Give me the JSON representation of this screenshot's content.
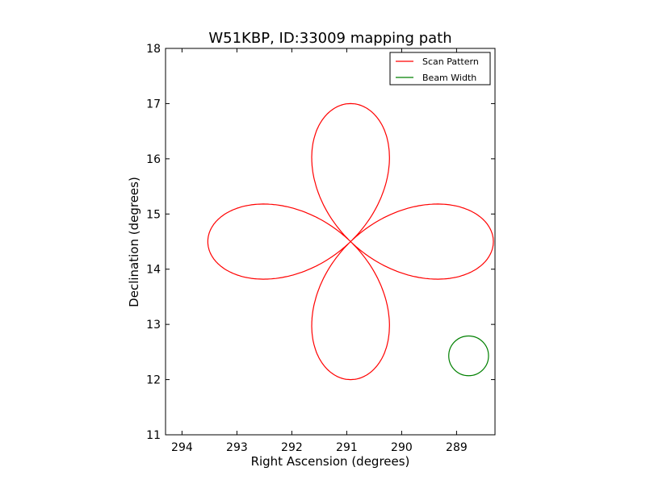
{
  "chart_data": {
    "type": "line",
    "title": "W51KBP, ID:33009 mapping path",
    "xlabel": "Right Ascension (degrees)",
    "ylabel": "Declination (degrees)",
    "xlim": [
      294.3,
      288.3
    ],
    "ylim": [
      11,
      18
    ],
    "x_ticks": [
      "294",
      "293",
      "292",
      "291",
      "290",
      "289"
    ],
    "x_tick_values": [
      294,
      293,
      292,
      291,
      290,
      289
    ],
    "y_ticks": [
      "11",
      "12",
      "13",
      "14",
      "15",
      "16",
      "17",
      "18"
    ],
    "y_tick_values": [
      11,
      12,
      13,
      14,
      15,
      16,
      17,
      18
    ],
    "grid": false,
    "legend": {
      "placement": "top-right",
      "entries": [
        {
          "label": "Scan Pattern",
          "color": "#ff0000"
        },
        {
          "label": "Beam Width",
          "color": "#008000"
        }
      ]
    },
    "series": [
      {
        "name": "Scan Pattern",
        "color": "#ff0000",
        "center": [
          290.93,
          14.5
        ],
        "petal_reach_ra": 2.6,
        "petal_reach_dec": 2.5,
        "petals": 4
      },
      {
        "name": "Beam Width",
        "color": "#008000",
        "circle_center": [
          288.78,
          12.43
        ],
        "circle_radius_dec": 0.36
      }
    ]
  }
}
